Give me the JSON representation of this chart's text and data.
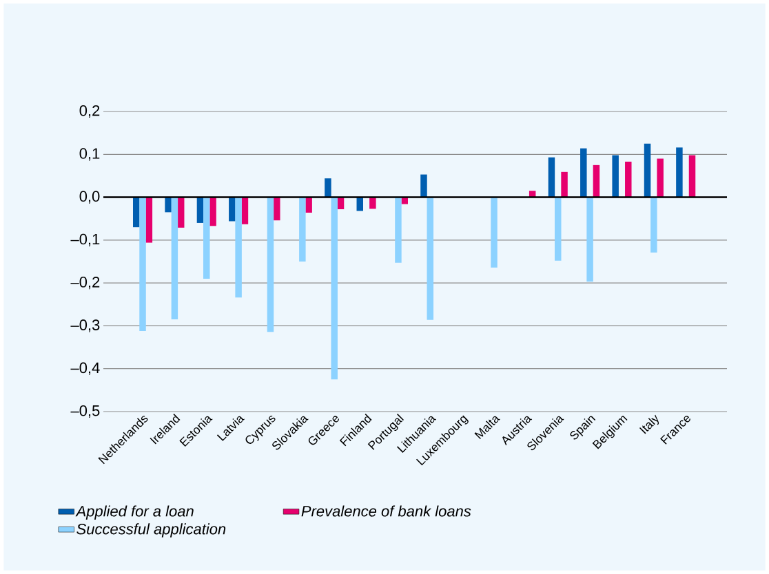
{
  "chart_data": {
    "type": "bar",
    "categories": [
      "Netherlands",
      "Ireland",
      "Estonia",
      "Latvia",
      "Cyprus",
      "Slovakia",
      "Greece",
      "Finland",
      "Portugal",
      "Lithuania",
      "Luxembourg",
      "Malta",
      "Austria",
      "Slovenia",
      "Spain",
      "Belgium",
      "Italy",
      "France"
    ],
    "series": [
      {
        "name": "Applied for a loan",
        "color": "#005eb0",
        "values": [
          -0.07,
          -0.035,
          -0.06,
          -0.056,
          null,
          null,
          0.044,
          -0.032,
          null,
          0.053,
          null,
          null,
          null,
          0.093,
          0.114,
          0.098,
          0.125,
          0.116
        ]
      },
      {
        "name": "Prevalence of bank loans",
        "color": "#e6006e",
        "values": [
          -0.106,
          -0.071,
          -0.067,
          -0.063,
          -0.054,
          -0.036,
          -0.028,
          -0.027,
          -0.016,
          null,
          null,
          null,
          0.015,
          0.059,
          0.075,
          0.083,
          0.09,
          0.098
        ]
      },
      {
        "name": "Successful application",
        "color": "#8cd2ff",
        "values": [
          -0.312,
          -0.285,
          -0.19,
          -0.234,
          -0.314,
          -0.15,
          -0.425,
          null,
          -0.153,
          -0.286,
          null,
          -0.164,
          null,
          -0.148,
          -0.197,
          null,
          -0.129,
          null
        ]
      }
    ],
    "ylim": [
      -0.5,
      0.2
    ],
    "yticks": [
      {
        "value": -0.5,
        "label": "–0,5"
      },
      {
        "value": -0.4,
        "label": "–0,4"
      },
      {
        "value": -0.3,
        "label": "–0,3"
      },
      {
        "value": -0.2,
        "label": "–0,2"
      },
      {
        "value": -0.1,
        "label": "–0,1"
      },
      {
        "value": 0.0,
        "label": "0,0"
      },
      {
        "value": 0.1,
        "label": "0,1"
      },
      {
        "value": 0.2,
        "label": "0,2"
      }
    ],
    "grid": "y",
    "legend": "bottom"
  }
}
